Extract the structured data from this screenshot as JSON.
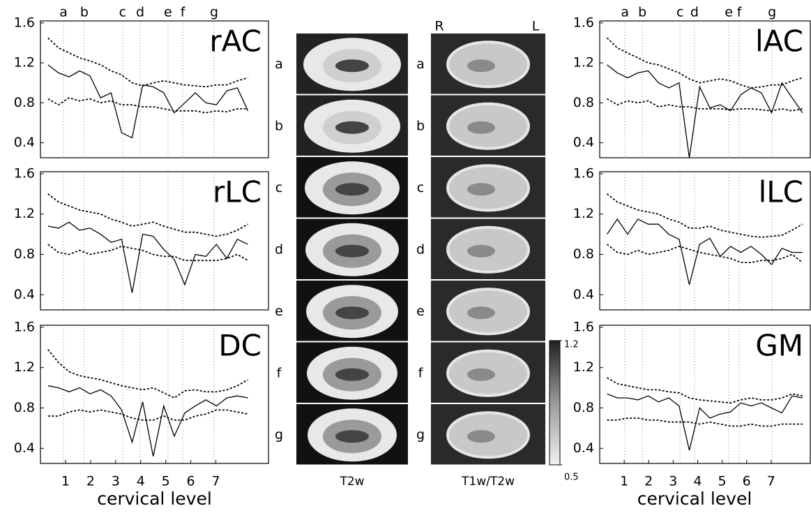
{
  "chart_data": [
    {
      "type": "line",
      "title": "rAC",
      "xlim": [
        0,
        9.1
      ],
      "ylim": [
        0.25,
        1.62
      ],
      "yticks": [
        0.4,
        0.8,
        1.2,
        1.6
      ],
      "vlines": [
        0.92,
        1.75,
        3.28,
        3.98,
        5.09,
        5.68,
        6.93
      ],
      "vline_labels": [
        "a",
        "b",
        "c",
        "d",
        "e",
        "f",
        "g"
      ],
      "x": [
        0.3,
        0.72,
        1.14,
        1.56,
        1.98,
        2.4,
        2.82,
        3.24,
        3.66,
        4.08,
        4.5,
        4.92,
        5.34,
        5.76,
        6.18,
        6.6,
        7.02,
        7.44,
        7.86,
        8.28
      ],
      "series": [
        {
          "color": "#000000",
          "dashed": false,
          "values": [
            1.18,
            1.1,
            1.06,
            1.12,
            1.07,
            0.85,
            0.9,
            0.5,
            0.45,
            0.98,
            0.96,
            0.9,
            0.7,
            0.8,
            0.9,
            0.8,
            0.78,
            0.92,
            0.95,
            0.72
          ]
        },
        {
          "color": "#000000",
          "dashed": true,
          "values": [
            1.45,
            1.35,
            1.3,
            1.25,
            1.22,
            1.18,
            1.12,
            1.08,
            1.0,
            0.97,
            1.0,
            1.02,
            1.0,
            0.98,
            0.97,
            0.96,
            0.98,
            0.98,
            1.02,
            1.05
          ]
        },
        {
          "color": "#000000",
          "dashed": true,
          "values": [
            0.84,
            0.78,
            0.85,
            0.82,
            0.84,
            0.8,
            0.82,
            0.78,
            0.78,
            0.76,
            0.76,
            0.74,
            0.72,
            0.72,
            0.72,
            0.7,
            0.72,
            0.71,
            0.74,
            0.74
          ]
        }
      ]
    },
    {
      "type": "line",
      "title": "rLC",
      "xlim": [
        0,
        9.1
      ],
      "ylim": [
        0.25,
        1.62
      ],
      "yticks": [
        0.4,
        0.8,
        1.2,
        1.6
      ],
      "vlines": [
        0.92,
        1.75,
        3.28,
        3.98,
        5.09,
        5.68,
        6.93
      ],
      "x": [
        0.3,
        0.72,
        1.14,
        1.56,
        1.98,
        2.4,
        2.82,
        3.24,
        3.66,
        4.08,
        4.5,
        4.92,
        5.34,
        5.76,
        6.18,
        6.6,
        7.02,
        7.44,
        7.86,
        8.28
      ],
      "series": [
        {
          "color": "#000000",
          "dashed": false,
          "values": [
            1.08,
            1.06,
            1.12,
            1.04,
            1.06,
            1.0,
            0.92,
            0.95,
            0.42,
            1.0,
            0.98,
            0.85,
            0.75,
            0.5,
            0.8,
            0.78,
            0.9,
            0.76,
            0.95,
            0.9
          ]
        },
        {
          "color": "#000000",
          "dashed": true,
          "values": [
            1.4,
            1.32,
            1.28,
            1.24,
            1.22,
            1.2,
            1.15,
            1.12,
            1.08,
            1.1,
            1.12,
            1.08,
            1.05,
            1.02,
            1.02,
            1.0,
            0.98,
            1.0,
            1.04,
            1.1
          ]
        },
        {
          "color": "#000000",
          "dashed": true,
          "values": [
            0.9,
            0.82,
            0.8,
            0.84,
            0.8,
            0.82,
            0.84,
            0.88,
            0.86,
            0.84,
            0.8,
            0.78,
            0.78,
            0.74,
            0.74,
            0.74,
            0.74,
            0.76,
            0.8,
            0.74
          ]
        }
      ]
    },
    {
      "type": "line",
      "title": "DC",
      "xlim": [
        0,
        9.1
      ],
      "ylim": [
        0.25,
        1.62
      ],
      "yticks": [
        0.4,
        0.8,
        1.2,
        1.6
      ],
      "xticks": [
        1,
        2,
        3,
        4,
        5,
        6,
        7
      ],
      "xlabel": "cervical level",
      "vlines": [
        0.92,
        1.75,
        3.28,
        3.98,
        5.09,
        5.68,
        6.93
      ],
      "x": [
        0.3,
        0.72,
        1.14,
        1.56,
        1.98,
        2.4,
        2.82,
        3.24,
        3.66,
        4.08,
        4.5,
        4.92,
        5.34,
        5.76,
        6.18,
        6.6,
        7.02,
        7.44,
        7.86,
        8.28
      ],
      "series": [
        {
          "color": "#000000",
          "dashed": false,
          "values": [
            1.02,
            1.0,
            0.96,
            1.0,
            0.94,
            0.98,
            0.92,
            0.78,
            0.46,
            0.86,
            0.32,
            0.82,
            0.52,
            0.75,
            0.82,
            0.88,
            0.82,
            0.9,
            0.92,
            0.9
          ]
        },
        {
          "color": "#000000",
          "dashed": true,
          "values": [
            1.38,
            1.25,
            1.16,
            1.12,
            1.1,
            1.08,
            1.05,
            1.02,
            1.0,
            0.98,
            1.0,
            0.95,
            0.9,
            0.97,
            0.98,
            0.96,
            0.96,
            0.98,
            1.02,
            1.08
          ]
        },
        {
          "color": "#000000",
          "dashed": true,
          "values": [
            0.72,
            0.72,
            0.76,
            0.78,
            0.76,
            0.78,
            0.76,
            0.74,
            0.7,
            0.68,
            0.68,
            0.72,
            0.68,
            0.68,
            0.72,
            0.74,
            0.78,
            0.78,
            0.76,
            0.74
          ]
        }
      ]
    },
    {
      "type": "line",
      "title": "lAC",
      "xlim": [
        0,
        8.6
      ],
      "ylim": [
        0.25,
        1.62
      ],
      "yticks": [
        0.4,
        0.8,
        1.2,
        1.6
      ],
      "vlines": [
        1.03,
        1.74,
        3.28,
        3.87,
        5.27,
        5.7,
        7.04
      ],
      "vline_labels": [
        "a",
        "b",
        "c",
        "d",
        "e",
        "f",
        "g"
      ],
      "x": [
        0.3,
        0.72,
        1.14,
        1.56,
        1.98,
        2.4,
        2.82,
        3.24,
        3.66,
        4.08,
        4.5,
        4.92,
        5.34,
        5.76,
        6.18,
        6.6,
        7.02,
        7.44,
        7.86,
        8.28
      ],
      "series": [
        {
          "color": "#000000",
          "dashed": false,
          "values": [
            1.18,
            1.1,
            1.05,
            1.1,
            1.12,
            1.0,
            0.95,
            1.0,
            0.25,
            0.96,
            0.75,
            0.78,
            0.72,
            0.88,
            0.95,
            0.9,
            0.7,
            1.0,
            0.85,
            0.7
          ]
        },
        {
          "color": "#000000",
          "dashed": true,
          "values": [
            1.45,
            1.35,
            1.3,
            1.25,
            1.2,
            1.18,
            1.14,
            1.1,
            1.04,
            1.0,
            1.02,
            1.04,
            1.02,
            0.98,
            0.95,
            0.96,
            0.98,
            0.98,
            1.02,
            1.05
          ]
        },
        {
          "color": "#000000",
          "dashed": true,
          "values": [
            0.84,
            0.78,
            0.82,
            0.8,
            0.82,
            0.76,
            0.78,
            0.76,
            0.76,
            0.74,
            0.74,
            0.74,
            0.73,
            0.74,
            0.74,
            0.73,
            0.72,
            0.74,
            0.72,
            0.74
          ]
        }
      ]
    },
    {
      "type": "line",
      "title": "lLC",
      "xlim": [
        0,
        8.6
      ],
      "ylim": [
        0.25,
        1.62
      ],
      "yticks": [
        0.4,
        0.8,
        1.2,
        1.6
      ],
      "vlines": [
        1.03,
        1.74,
        3.28,
        3.87,
        5.27,
        5.7,
        7.04
      ],
      "x": [
        0.3,
        0.72,
        1.14,
        1.56,
        1.98,
        2.4,
        2.82,
        3.24,
        3.66,
        4.08,
        4.5,
        4.92,
        5.34,
        5.76,
        6.18,
        6.6,
        7.02,
        7.44,
        7.86,
        8.28
      ],
      "series": [
        {
          "color": "#000000",
          "dashed": false,
          "values": [
            1.0,
            1.15,
            1.0,
            1.15,
            1.1,
            1.1,
            1.0,
            0.95,
            0.5,
            0.9,
            0.96,
            0.78,
            0.88,
            0.82,
            0.88,
            0.8,
            0.7,
            0.86,
            0.82,
            0.82
          ]
        },
        {
          "color": "#000000",
          "dashed": true,
          "values": [
            1.4,
            1.32,
            1.28,
            1.24,
            1.22,
            1.2,
            1.15,
            1.12,
            1.06,
            1.06,
            1.08,
            1.04,
            1.02,
            1.0,
            0.98,
            0.97,
            0.98,
            0.99,
            1.04,
            1.1
          ]
        },
        {
          "color": "#000000",
          "dashed": true,
          "values": [
            0.9,
            0.82,
            0.8,
            0.84,
            0.8,
            0.82,
            0.84,
            0.88,
            0.85,
            0.82,
            0.8,
            0.78,
            0.76,
            0.72,
            0.72,
            0.74,
            0.74,
            0.76,
            0.8,
            0.72
          ]
        }
      ]
    },
    {
      "type": "line",
      "title": "GM",
      "xlim": [
        0,
        8.6
      ],
      "ylim": [
        0.25,
        1.62
      ],
      "yticks": [
        0.4,
        0.8,
        1.2,
        1.6
      ],
      "xticks": [
        1,
        2,
        3,
        4,
        5,
        6,
        7
      ],
      "xlabel": "cervical level",
      "vlines": [
        1.03,
        1.74,
        3.28,
        3.87,
        5.27,
        5.7,
        7.04
      ],
      "x": [
        0.3,
        0.72,
        1.14,
        1.56,
        1.98,
        2.4,
        2.82,
        3.24,
        3.66,
        4.08,
        4.5,
        4.92,
        5.34,
        5.76,
        6.18,
        6.6,
        7.02,
        7.44,
        7.86,
        8.28
      ],
      "series": [
        {
          "color": "#000000",
          "dashed": false,
          "values": [
            0.94,
            0.9,
            0.9,
            0.88,
            0.92,
            0.86,
            0.9,
            0.82,
            0.38,
            0.8,
            0.7,
            0.74,
            0.76,
            0.85,
            0.82,
            0.85,
            0.8,
            0.75,
            0.92,
            0.9
          ]
        },
        {
          "color": "#000000",
          "dashed": true,
          "values": [
            1.1,
            1.04,
            1.02,
            1.0,
            0.98,
            0.98,
            0.96,
            0.95,
            0.9,
            0.88,
            0.87,
            0.86,
            0.85,
            0.88,
            0.9,
            0.88,
            0.88,
            0.9,
            0.94,
            0.92
          ]
        },
        {
          "color": "#000000",
          "dashed": true,
          "values": [
            0.68,
            0.68,
            0.7,
            0.7,
            0.68,
            0.68,
            0.66,
            0.66,
            0.66,
            0.64,
            0.66,
            0.64,
            0.62,
            0.62,
            0.64,
            0.62,
            0.62,
            0.64,
            0.64,
            0.64
          ]
        }
      ]
    }
  ],
  "figure": {
    "rows": [
      "a",
      "b",
      "c",
      "d",
      "e",
      "f",
      "g"
    ],
    "columns": [
      {
        "label": "T2w"
      },
      {
        "label": "T1w/T2w",
        "side_labels": [
          "R",
          "L"
        ]
      }
    ],
    "colorbar": {
      "ticks": [
        1.2,
        0.5
      ]
    }
  }
}
